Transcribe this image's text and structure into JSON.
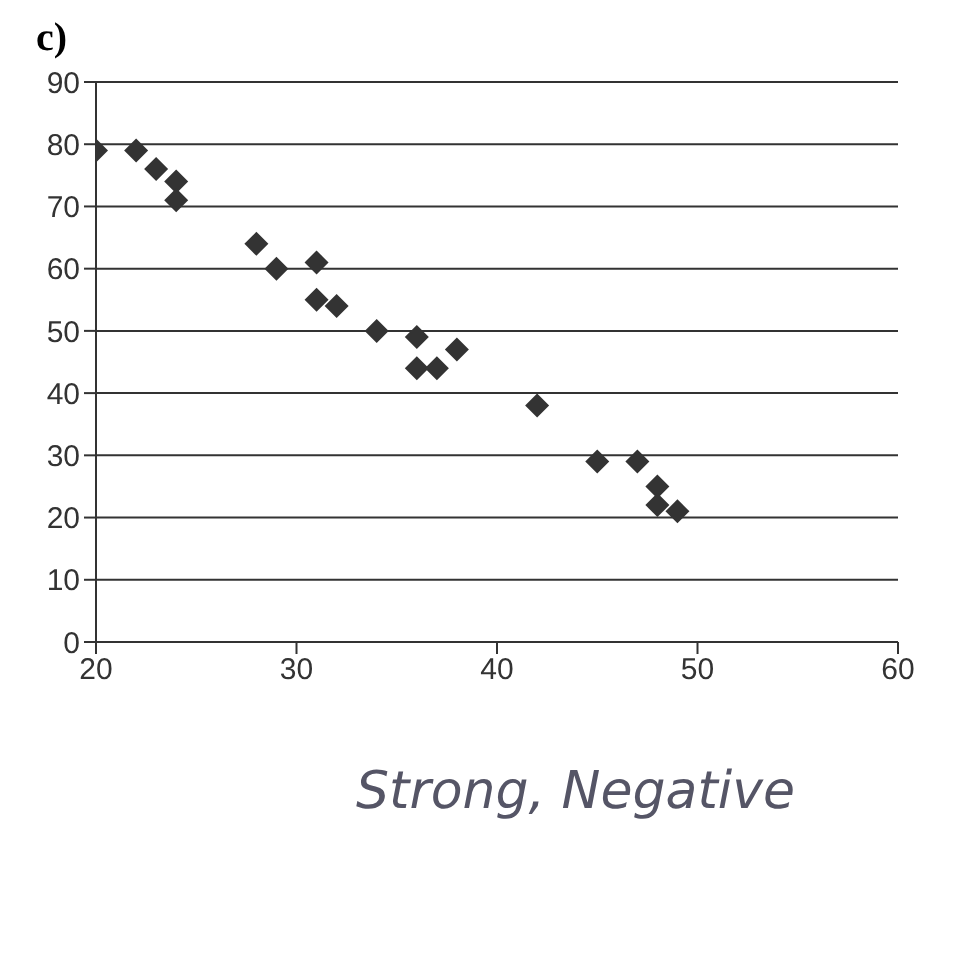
{
  "chart_data": {
    "type": "scatter",
    "title": "c)",
    "x": [
      20,
      22,
      23,
      24,
      24,
      28,
      29,
      31,
      31,
      32,
      34,
      36,
      36,
      37,
      38,
      42,
      45,
      47,
      48,
      48,
      49
    ],
    "values": [
      79,
      79,
      76,
      74,
      71,
      64,
      60,
      61,
      55,
      54,
      50,
      49,
      44,
      44,
      47,
      38,
      29,
      29,
      25,
      22,
      21
    ],
    "color": "#333333",
    "marker": "diamond",
    "grid": "y",
    "xlim": [
      20,
      60
    ],
    "xticks": [
      20,
      30,
      40,
      50,
      60
    ],
    "ylim": [
      0,
      90
    ],
    "yticks": [
      0,
      10,
      20,
      30,
      40,
      50,
      60,
      70,
      80,
      90
    ],
    "annotations": [
      "Strong, Negative"
    ]
  }
}
